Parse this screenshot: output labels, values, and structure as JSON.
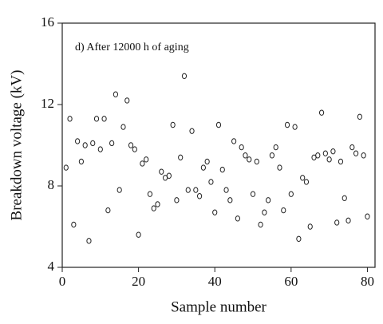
{
  "chart_data": {
    "type": "scatter",
    "annotation": "d) After 12000 h of aging",
    "x_label": "Sample number",
    "y_label": "Breakdown voltage (kV)",
    "xlim": [
      0,
      82
    ],
    "ylim": [
      4,
      16
    ],
    "xticks": [
      0,
      20,
      40,
      60,
      80
    ],
    "yticks": [
      4,
      8,
      12,
      16
    ],
    "series": [
      {
        "color": "#222222",
        "x": [
          1,
          2,
          3,
          4,
          5,
          6,
          7,
          8,
          9,
          10,
          11,
          12,
          13,
          14,
          15,
          16,
          17,
          18,
          19,
          20,
          21,
          22,
          23,
          24,
          25,
          26,
          27,
          28,
          29,
          30,
          31,
          32,
          33,
          34,
          35,
          36,
          37,
          38,
          39,
          40,
          41,
          42,
          43,
          44,
          45,
          46,
          47,
          48,
          49,
          50,
          51,
          52,
          53,
          54,
          55,
          56,
          57,
          58,
          59,
          60,
          61,
          62,
          63,
          64,
          65,
          66,
          67,
          68,
          69,
          70,
          71,
          72,
          73,
          74,
          75,
          76,
          77,
          78,
          79,
          80
        ],
        "values": [
          8.9,
          11.3,
          6.1,
          10.2,
          9.2,
          10.0,
          5.3,
          10.1,
          11.3,
          9.8,
          11.3,
          6.8,
          10.1,
          12.5,
          7.8,
          10.9,
          12.2,
          10.0,
          9.8,
          5.6,
          9.1,
          9.3,
          7.6,
          6.9,
          7.1,
          8.7,
          8.4,
          8.5,
          11.0,
          7.3,
          9.4,
          13.4,
          7.8,
          10.7,
          7.8,
          7.5,
          8.9,
          9.2,
          8.2,
          6.7,
          11.0,
          8.8,
          7.8,
          7.3,
          10.2,
          6.4,
          9.9,
          9.5,
          9.3,
          7.6,
          9.2,
          6.1,
          6.7,
          7.3,
          9.5,
          9.9,
          8.9,
          6.8,
          11.0,
          7.6,
          10.9,
          5.4,
          8.4,
          8.2,
          6.0,
          9.4,
          9.5,
          11.6,
          9.6,
          9.3,
          9.7,
          6.2,
          9.2,
          7.4,
          6.3,
          9.9,
          9.6,
          11.4,
          9.5,
          6.5
        ]
      }
    ]
  }
}
